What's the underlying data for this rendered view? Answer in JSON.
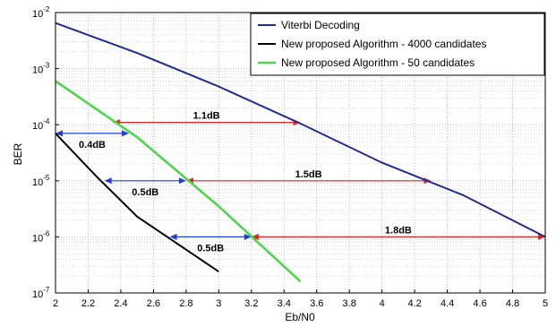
{
  "chart_data": {
    "type": "line",
    "title": "",
    "xlabel": "Eb/N0",
    "ylabel": "BER",
    "xlim": [
      2,
      5
    ],
    "ylim": [
      1e-07,
      0.01
    ],
    "yscale": "log",
    "grid": true,
    "legend_position": "top-right",
    "x_ticks": [
      "2",
      "2.2",
      "2.4",
      "2.6",
      "2.8",
      "3",
      "3.2",
      "3.4",
      "3.6",
      "3.8",
      "4",
      "4.2",
      "4.4",
      "4.6",
      "4.8",
      "5"
    ],
    "y_ticks": [
      {
        "base": "10",
        "exp": "-7"
      },
      {
        "base": "10",
        "exp": "-6"
      },
      {
        "base": "10",
        "exp": "-5"
      },
      {
        "base": "10",
        "exp": "-4"
      },
      {
        "base": "10",
        "exp": "-3"
      },
      {
        "base": "10",
        "exp": "-2"
      }
    ],
    "series": [
      {
        "name": "Viterbi Decoding",
        "color": "#1f2d8f",
        "x": [
          2.0,
          2.5,
          3.0,
          3.5,
          4.0,
          4.5,
          5.0
        ],
        "y": [
          0.0065,
          0.0019,
          0.00048,
          0.000105,
          2.1e-05,
          5.5e-06,
          1e-06
        ]
      },
      {
        "name": "New proposed Algorithm - 4000 candidates",
        "color": "#000000",
        "x": [
          2.0,
          2.25,
          2.5,
          3.0
        ],
        "y": [
          7e-05,
          1.2e-05,
          2.3e-06,
          2.4e-07
        ]
      },
      {
        "name": "New proposed Algorithm - 50 candidates",
        "color": "#4cd64c",
        "x": [
          2.0,
          2.5,
          3.0,
          3.5
        ],
        "y": [
          0.0006,
          6e-05,
          3.5e-06,
          1.6e-07
        ]
      }
    ],
    "annotations": [
      {
        "label": "1.1dB",
        "x_start": 2.35,
        "x_end": 3.5,
        "y": 0.00011,
        "color": "#e32020"
      },
      {
        "label": "0.4dB",
        "x_start": 2.0,
        "x_end": 2.45,
        "y": 7e-05,
        "color": "#1f3fd0"
      },
      {
        "label": "1.5dB",
        "x_start": 2.8,
        "x_end": 4.3,
        "y": 1e-05,
        "color": "#e32020"
      },
      {
        "label": "0.5dB",
        "x_start": 2.3,
        "x_end": 2.8,
        "y": 1e-05,
        "color": "#1f3fd0"
      },
      {
        "label": "1.8dB",
        "x_start": 3.2,
        "x_end": 5.0,
        "y": 1e-06,
        "color": "#e32020"
      },
      {
        "label": "0.5dB",
        "x_start": 2.7,
        "x_end": 3.2,
        "y": 1e-06,
        "color": "#1f3fd0"
      }
    ]
  }
}
